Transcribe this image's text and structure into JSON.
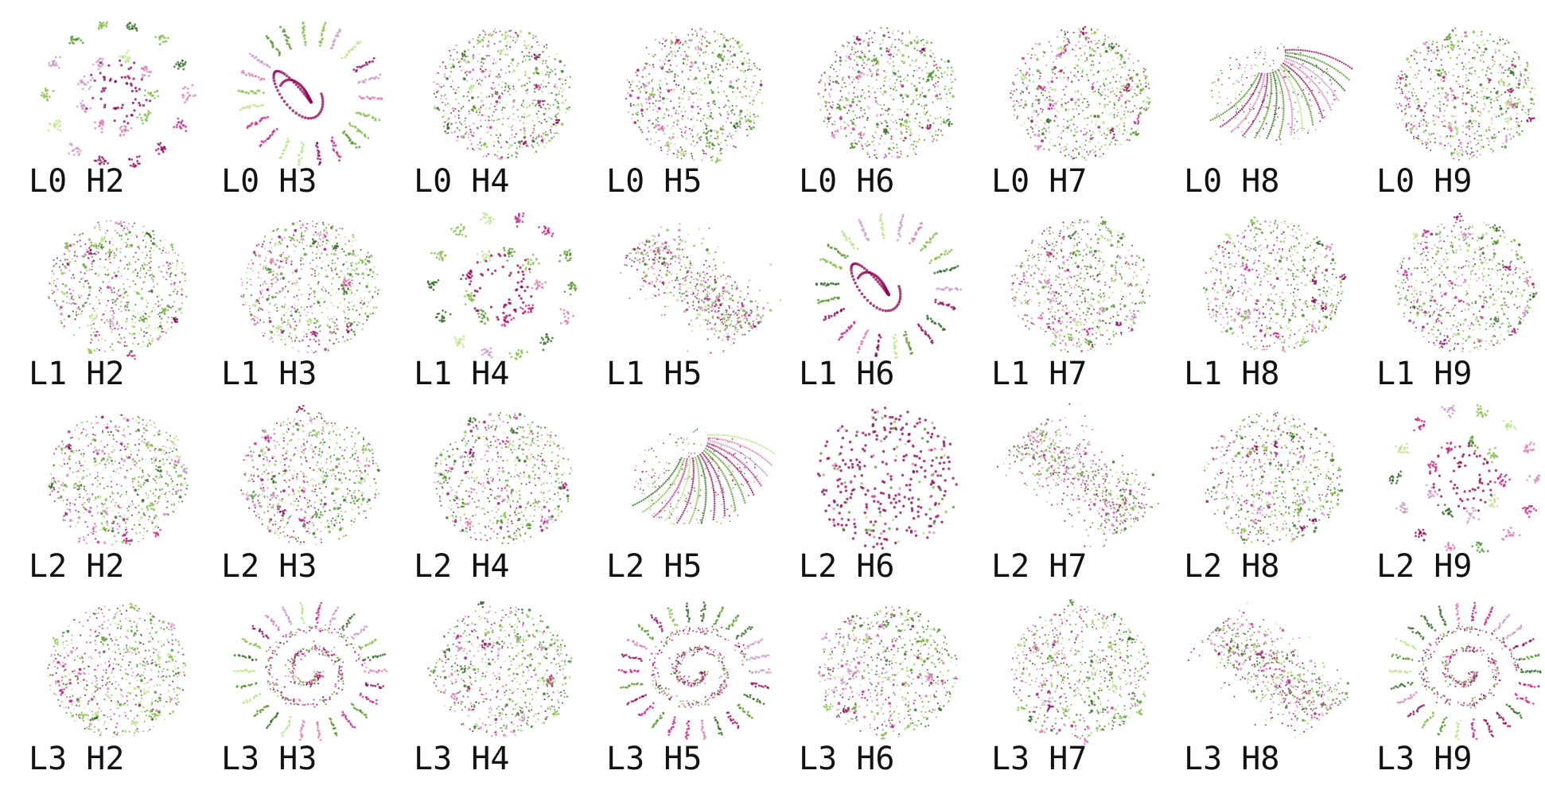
{
  "layers": [
    "L0",
    "L1",
    "L2",
    "L3"
  ],
  "heads": [
    "H2",
    "H3",
    "H4",
    "H5",
    "H6",
    "H7",
    "H8",
    "H9"
  ],
  "palette": [
    "#8e0152",
    "#c51b7d",
    "#de77ae",
    "#c994c7",
    "#7fbc41",
    "#4d9221",
    "#276419",
    "#b8e186"
  ],
  "panels": [
    {
      "label": "L0 H2",
      "pattern": "clusters-ring"
    },
    {
      "label": "L0 H3",
      "pattern": "radial-spokes"
    },
    {
      "label": "L0 H4",
      "pattern": "blob"
    },
    {
      "label": "L0 H5",
      "pattern": "blob"
    },
    {
      "label": "L0 H6",
      "pattern": "blob"
    },
    {
      "label": "L0 H7",
      "pattern": "blob"
    },
    {
      "label": "L0 H8",
      "pattern": "fan"
    },
    {
      "label": "L0 H9",
      "pattern": "blob"
    },
    {
      "label": "L1 H2",
      "pattern": "blob"
    },
    {
      "label": "L1 H3",
      "pattern": "blob"
    },
    {
      "label": "L1 H4",
      "pattern": "clusters-ring"
    },
    {
      "label": "L1 H5",
      "pattern": "diagonal"
    },
    {
      "label": "L1 H6",
      "pattern": "radial-spokes"
    },
    {
      "label": "L1 H7",
      "pattern": "blob"
    },
    {
      "label": "L1 H8",
      "pattern": "blob"
    },
    {
      "label": "L1 H9",
      "pattern": "blob"
    },
    {
      "label": "L2 H2",
      "pattern": "blob"
    },
    {
      "label": "L2 H3",
      "pattern": "blob"
    },
    {
      "label": "L2 H4",
      "pattern": "blob"
    },
    {
      "label": "L2 H5",
      "pattern": "fan"
    },
    {
      "label": "L2 H6",
      "pattern": "sparse-dots"
    },
    {
      "label": "L2 H7",
      "pattern": "diagonal"
    },
    {
      "label": "L2 H8",
      "pattern": "blob"
    },
    {
      "label": "L2 H9",
      "pattern": "clusters-ring"
    },
    {
      "label": "L3 H2",
      "pattern": "blob"
    },
    {
      "label": "L3 H3",
      "pattern": "spiral"
    },
    {
      "label": "L3 H4",
      "pattern": "blob"
    },
    {
      "label": "L3 H5",
      "pattern": "spiral"
    },
    {
      "label": "L3 H6",
      "pattern": "blob"
    },
    {
      "label": "L3 H7",
      "pattern": "blob"
    },
    {
      "label": "L3 H8",
      "pattern": "diagonal"
    },
    {
      "label": "L3 H9",
      "pattern": "spiral"
    }
  ]
}
